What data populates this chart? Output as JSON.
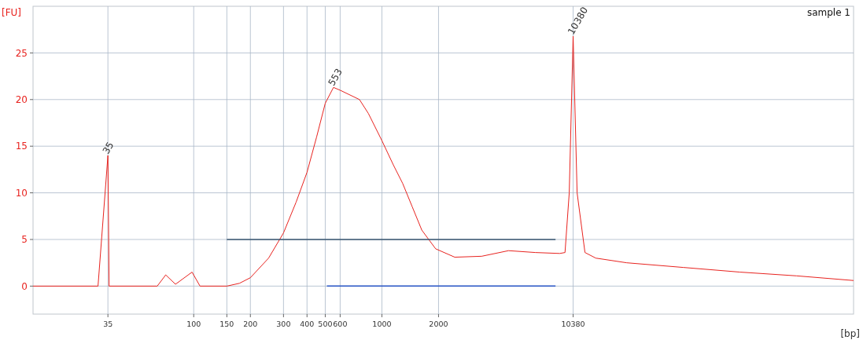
{
  "chart_data": {
    "type": "line",
    "title": "sample 1",
    "xlabel": "[bp]",
    "ylabel": "[FU]",
    "log": "x",
    "xlim": [
      14,
      321000
    ],
    "ylim": [
      -3,
      30
    ],
    "xticks": [
      35,
      100,
      150,
      200,
      300,
      400,
      500,
      600,
      1000,
      2000,
      10380
    ],
    "yticks": [
      0,
      5,
      10,
      15,
      20,
      25
    ],
    "grid": true,
    "series": [
      {
        "color": "#e8231f",
        "x": [
          14,
          31,
          35,
          35.5,
          64,
          71,
          80,
          98,
          108,
          150,
          175,
          200,
          250,
          300,
          350,
          400,
          450,
          500,
          553,
          600,
          760,
          848,
          1000,
          1150,
          1290,
          1450,
          1630,
          1930,
          2440,
          3390,
          4710,
          6550,
          8810,
          9400,
          9900,
          10380,
          10900,
          12000,
          13700,
          20000,
          40000,
          80000,
          160000,
          321000
        ],
        "values": [
          0,
          0,
          14,
          0,
          0,
          1.2,
          0.2,
          1.5,
          0,
          0,
          0.3,
          0.9,
          3,
          5.7,
          9,
          12.2,
          16,
          19.6,
          21.3,
          21,
          20,
          18.5,
          15.6,
          13,
          11,
          8.5,
          6,
          4,
          3.1,
          3.2,
          3.8,
          3.6,
          3.5,
          3.6,
          10,
          26.8,
          10,
          3.6,
          3,
          2.5,
          2,
          1.5,
          1.1,
          0.6
        ]
      },
      {
        "color": "#3a5670",
        "x": [
          150,
          8370
        ],
        "values": [
          5,
          5
        ]
      },
      {
        "color": "#2a56c6",
        "x": [
          510,
          8370
        ],
        "values": [
          0,
          0
        ]
      }
    ],
    "annotations": [
      {
        "text": "35",
        "x": 35,
        "y": 14
      },
      {
        "text": "553",
        "x": 553,
        "y": 21.3
      },
      {
        "text": "10380",
        "x": 10380,
        "y": 26.8
      }
    ]
  }
}
